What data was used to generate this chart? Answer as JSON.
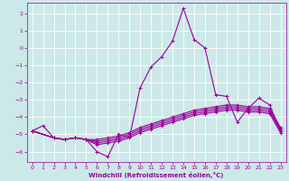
{
  "xlabel": "Windchill (Refroidissement éolien,°C)",
  "bg_color": "#cce8e8",
  "grid_color": "#ffffff",
  "line_color": "#990099",
  "xlim": [
    -0.5,
    23.5
  ],
  "ylim": [
    -6.6,
    2.6
  ],
  "yticks": [
    -6,
    -5,
    -4,
    -3,
    -2,
    -1,
    0,
    1,
    2
  ],
  "xticks": [
    0,
    1,
    2,
    3,
    4,
    5,
    6,
    7,
    8,
    9,
    10,
    11,
    12,
    13,
    14,
    15,
    16,
    17,
    18,
    19,
    20,
    21,
    22,
    23
  ],
  "series": [
    {
      "x": [
        0,
        1,
        2,
        3,
        4,
        5,
        6,
        7,
        8,
        9,
        10,
        11,
        12,
        13,
        14,
        15,
        16,
        17,
        18,
        19,
        20,
        21,
        22,
        23
      ],
      "y": [
        -4.8,
        -4.5,
        -5.2,
        -5.3,
        -5.2,
        -5.3,
        -6.0,
        -6.3,
        -5.0,
        -5.2,
        -2.3,
        -1.1,
        -0.5,
        0.4,
        2.3,
        0.5,
        0.0,
        -2.7,
        -2.8,
        -4.3,
        -3.5,
        -2.9,
        -3.3,
        -4.8
      ]
    },
    {
      "x": [
        0,
        2,
        3,
        4,
        5,
        6,
        7,
        8,
        9,
        10,
        11,
        12,
        13,
        14,
        15,
        16,
        17,
        18,
        19,
        20,
        21,
        22,
        23
      ],
      "y": [
        -4.8,
        -5.2,
        -5.3,
        -5.2,
        -5.3,
        -5.6,
        -5.5,
        -5.4,
        -5.2,
        -4.9,
        -4.7,
        -4.5,
        -4.3,
        -4.1,
        -3.9,
        -3.8,
        -3.7,
        -3.6,
        -3.6,
        -3.7,
        -3.7,
        -3.8,
        -4.9
      ]
    },
    {
      "x": [
        0,
        2,
        3,
        4,
        5,
        6,
        7,
        8,
        9,
        10,
        11,
        12,
        13,
        14,
        15,
        16,
        17,
        18,
        19,
        20,
        21,
        22,
        23
      ],
      "y": [
        -4.8,
        -5.2,
        -5.3,
        -5.2,
        -5.3,
        -5.5,
        -5.4,
        -5.3,
        -5.1,
        -4.8,
        -4.6,
        -4.4,
        -4.2,
        -4.0,
        -3.8,
        -3.7,
        -3.6,
        -3.5,
        -3.5,
        -3.6,
        -3.6,
        -3.7,
        -4.8
      ]
    },
    {
      "x": [
        0,
        2,
        3,
        4,
        5,
        6,
        7,
        8,
        9,
        10,
        11,
        12,
        13,
        14,
        15,
        16,
        17,
        18,
        19,
        20,
        21,
        22,
        23
      ],
      "y": [
        -4.8,
        -5.2,
        -5.3,
        -5.2,
        -5.3,
        -5.4,
        -5.3,
        -5.2,
        -5.0,
        -4.7,
        -4.5,
        -4.3,
        -4.1,
        -3.9,
        -3.7,
        -3.6,
        -3.5,
        -3.4,
        -3.4,
        -3.5,
        -3.5,
        -3.6,
        -4.7
      ]
    },
    {
      "x": [
        0,
        2,
        3,
        4,
        5,
        6,
        7,
        8,
        9,
        10,
        11,
        12,
        13,
        14,
        15,
        16,
        17,
        18,
        19,
        20,
        21,
        22,
        23
      ],
      "y": [
        -4.8,
        -5.2,
        -5.3,
        -5.2,
        -5.3,
        -5.3,
        -5.2,
        -5.1,
        -4.9,
        -4.6,
        -4.4,
        -4.2,
        -4.0,
        -3.8,
        -3.6,
        -3.5,
        -3.4,
        -3.3,
        -3.3,
        -3.4,
        -3.4,
        -3.5,
        -4.6
      ]
    }
  ],
  "marker_size": 2.5,
  "line_width": 0.8,
  "tick_fontsize": 4.5,
  "xlabel_fontsize": 5.0
}
